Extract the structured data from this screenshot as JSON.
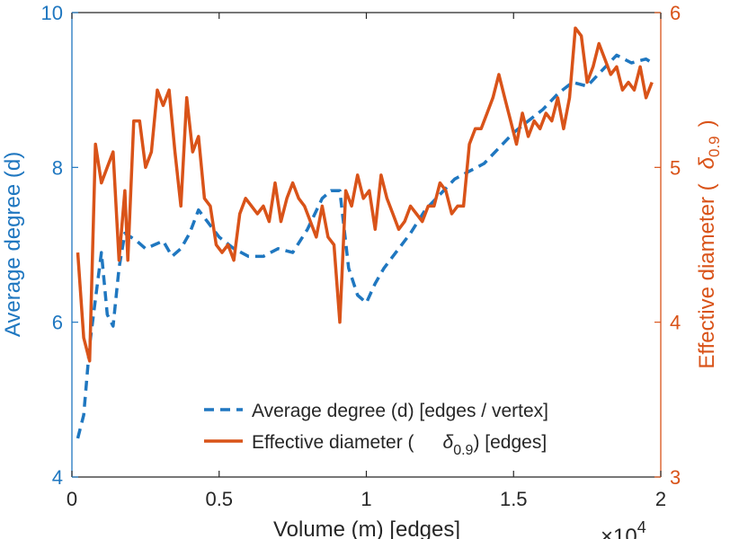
{
  "chart_data": {
    "type": "line",
    "title": "",
    "xlabel": "Volume (m) [edges]",
    "x_multiplier": "×10^4",
    "x_multiplier_base": "×10",
    "x_multiplier_exp": "4",
    "xlim": [
      0,
      2
    ],
    "xticks": [
      0,
      0.5,
      1,
      1.5,
      2
    ],
    "xtick_labels": [
      "0",
      "0.5",
      "1",
      "1.5",
      "2"
    ],
    "left_axis": {
      "label": "Average degree (d)",
      "ylim": [
        4,
        10
      ],
      "ticks": [
        4,
        6,
        8,
        10
      ],
      "tick_labels": [
        "4",
        "6",
        "8",
        "10"
      ],
      "color": "#1f77c0"
    },
    "right_axis": {
      "label": "Effective diameter (δ0.9)",
      "label_main": "Effective diameter (",
      "label_symbol": "δ",
      "label_sub": "0.9",
      "label_close": ")",
      "ylim": [
        3,
        6
      ],
      "ticks": [
        3,
        4,
        5,
        6
      ],
      "tick_labels": [
        "3",
        "4",
        "5",
        "6"
      ],
      "color": "#d95319"
    },
    "legend": {
      "placement": "bottom-right",
      "entries": [
        {
          "text": "Average degree (d) [edges / vertex]"
        },
        {
          "text_main": "Effective diameter (",
          "symbol": "δ",
          "sub": "0.9",
          "text_close": ") [edges]"
        }
      ]
    },
    "series": [
      {
        "name": "Average degree (d) [edges / vertex]",
        "axis": "left",
        "style": "dashed",
        "color": "#1f77c0",
        "x": [
          0.02,
          0.04,
          0.06,
          0.08,
          0.1,
          0.12,
          0.14,
          0.16,
          0.18,
          0.2,
          0.22,
          0.25,
          0.28,
          0.31,
          0.34,
          0.37,
          0.4,
          0.43,
          0.46,
          0.5,
          0.55,
          0.6,
          0.65,
          0.7,
          0.75,
          0.8,
          0.85,
          0.88,
          0.91,
          0.94,
          0.97,
          1.0,
          1.03,
          1.06,
          1.1,
          1.15,
          1.2,
          1.25,
          1.3,
          1.35,
          1.4,
          1.45,
          1.5,
          1.55,
          1.6,
          1.65,
          1.7,
          1.75,
          1.8,
          1.85,
          1.9,
          1.95,
          1.97
        ],
        "values": [
          4.5,
          4.8,
          5.7,
          6.3,
          6.9,
          6.1,
          5.95,
          6.7,
          7.15,
          7.1,
          7.05,
          6.95,
          7.0,
          7.05,
          6.85,
          6.95,
          7.15,
          7.45,
          7.3,
          7.1,
          6.95,
          6.85,
          6.85,
          6.95,
          6.9,
          7.2,
          7.6,
          7.7,
          7.7,
          6.7,
          6.35,
          6.25,
          6.5,
          6.7,
          6.9,
          7.15,
          7.45,
          7.65,
          7.85,
          7.95,
          8.05,
          8.25,
          8.45,
          8.6,
          8.75,
          8.95,
          9.1,
          9.05,
          9.25,
          9.45,
          9.35,
          9.4,
          9.35
        ]
      },
      {
        "name": "Effective diameter (δ0.9) [edges]",
        "axis": "right",
        "style": "solid",
        "color": "#d95319",
        "x": [
          0.02,
          0.04,
          0.06,
          0.08,
          0.1,
          0.12,
          0.14,
          0.16,
          0.18,
          0.19,
          0.21,
          0.23,
          0.25,
          0.27,
          0.29,
          0.31,
          0.33,
          0.35,
          0.37,
          0.39,
          0.41,
          0.43,
          0.45,
          0.47,
          0.49,
          0.51,
          0.53,
          0.55,
          0.57,
          0.59,
          0.61,
          0.63,
          0.65,
          0.67,
          0.69,
          0.71,
          0.73,
          0.75,
          0.77,
          0.79,
          0.81,
          0.83,
          0.85,
          0.87,
          0.89,
          0.91,
          0.93,
          0.95,
          0.97,
          0.99,
          1.01,
          1.03,
          1.05,
          1.07,
          1.09,
          1.11,
          1.13,
          1.15,
          1.17,
          1.19,
          1.21,
          1.23,
          1.25,
          1.27,
          1.29,
          1.31,
          1.33,
          1.35,
          1.37,
          1.39,
          1.41,
          1.43,
          1.45,
          1.47,
          1.49,
          1.51,
          1.53,
          1.55,
          1.57,
          1.59,
          1.61,
          1.63,
          1.65,
          1.67,
          1.69,
          1.71,
          1.73,
          1.75,
          1.77,
          1.79,
          1.81,
          1.83,
          1.85,
          1.87,
          1.89,
          1.91,
          1.93,
          1.95,
          1.97
        ],
        "values": [
          4.45,
          3.9,
          3.75,
          5.15,
          4.9,
          5.0,
          5.1,
          4.4,
          4.85,
          4.4,
          5.3,
          5.3,
          5.0,
          5.1,
          5.5,
          5.4,
          5.5,
          5.1,
          4.75,
          5.45,
          5.1,
          5.2,
          4.8,
          4.75,
          4.5,
          4.45,
          4.5,
          4.4,
          4.7,
          4.8,
          4.75,
          4.7,
          4.75,
          4.65,
          4.9,
          4.65,
          4.8,
          4.9,
          4.8,
          4.75,
          4.65,
          4.55,
          4.75,
          4.55,
          4.5,
          4.0,
          4.85,
          4.75,
          4.95,
          4.8,
          4.85,
          4.6,
          4.95,
          4.8,
          4.7,
          4.6,
          4.65,
          4.75,
          4.7,
          4.65,
          4.75,
          4.75,
          4.9,
          4.85,
          4.7,
          4.75,
          4.75,
          5.15,
          5.25,
          5.25,
          5.35,
          5.45,
          5.6,
          5.45,
          5.3,
          5.15,
          5.35,
          5.2,
          5.3,
          5.25,
          5.35,
          5.3,
          5.45,
          5.25,
          5.45,
          5.9,
          5.85,
          5.55,
          5.65,
          5.8,
          5.7,
          5.6,
          5.65,
          5.5,
          5.55,
          5.5,
          5.65,
          5.45,
          5.55
        ]
      }
    ]
  }
}
